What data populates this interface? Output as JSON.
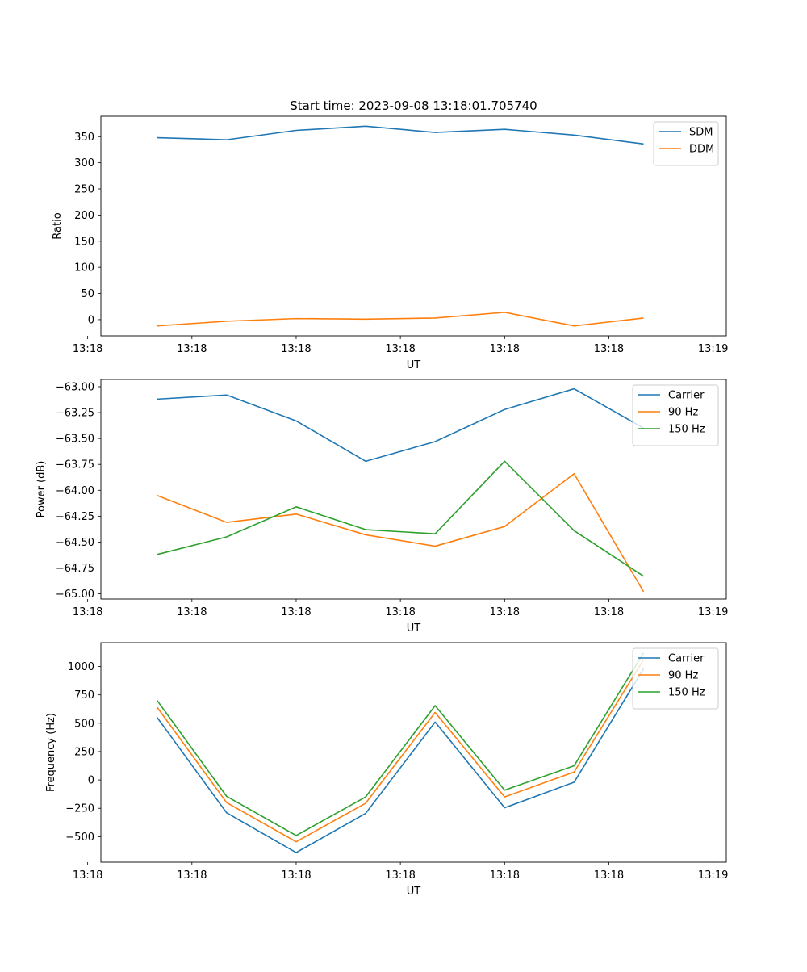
{
  "figure": {
    "title": "Start time: 2023-09-08 13:18:01.705740"
  },
  "colors": {
    "blue": "#1f77b4",
    "orange": "#ff7f0e",
    "green": "#2ca02c"
  },
  "chart_data": [
    {
      "type": "line",
      "xlabel": "UT",
      "ylabel": "Ratio",
      "x": [
        1,
        2,
        3,
        4,
        5,
        6,
        7,
        8
      ],
      "xlim": [
        0.19,
        9.19
      ],
      "xticks": [
        0,
        1.5,
        3,
        4.5,
        6,
        7.5,
        9
      ],
      "xtick_labels": [
        "13:18",
        "13:18",
        "13:18",
        "13:18",
        "13:18",
        "13:18",
        "13:19"
      ],
      "ylim": [
        -31,
        389
      ],
      "yticks": [
        0,
        50,
        100,
        150,
        200,
        250,
        300,
        350
      ],
      "ytick_labels": [
        "0",
        "50",
        "100",
        "150",
        "200",
        "250",
        "300",
        "350"
      ],
      "legend_position": "top-right",
      "series": [
        {
          "name": "SDM",
          "color": "#1f77b4",
          "values": [
            348,
            344,
            362,
            370,
            358,
            364,
            353,
            336
          ]
        },
        {
          "name": "DDM",
          "color": "#ff7f0e",
          "values": [
            -12,
            -3,
            2,
            1,
            3,
            14,
            -12,
            3
          ]
        }
      ]
    },
    {
      "type": "line",
      "xlabel": "UT",
      "ylabel": "Power (dB)",
      "x": [
        1,
        2,
        3,
        4,
        5,
        6,
        7,
        8
      ],
      "xlim": [
        0.19,
        9.19
      ],
      "xticks": [
        0,
        1.5,
        3,
        4.5,
        6,
        7.5,
        9
      ],
      "xtick_labels": [
        "13:18",
        "13:18",
        "13:18",
        "13:18",
        "13:18",
        "13:18",
        "13:19"
      ],
      "ylim": [
        -65.05,
        -62.93
      ],
      "yticks": [
        -65.0,
        -64.75,
        -64.5,
        -64.25,
        -64.0,
        -63.75,
        -63.5,
        -63.25,
        -63.0
      ],
      "ytick_labels": [
        "−65.00",
        "−64.75",
        "−64.50",
        "−64.25",
        "−64.00",
        "−63.75",
        "−63.50",
        "−63.25",
        "−63.00"
      ],
      "legend_position": "top-right",
      "series": [
        {
          "name": "Carrier",
          "color": "#1f77b4",
          "values": [
            -63.12,
            -63.08,
            -63.33,
            -63.72,
            -63.53,
            -63.22,
            -63.02,
            -63.4
          ]
        },
        {
          "name": "90 Hz",
          "color": "#ff7f0e",
          "values": [
            -64.05,
            -64.31,
            -64.23,
            -64.43,
            -64.54,
            -64.35,
            -63.84,
            -64.98
          ]
        },
        {
          "name": "150 Hz",
          "color": "#2ca02c",
          "values": [
            -64.62,
            -64.45,
            -64.16,
            -64.38,
            -64.42,
            -63.72,
            -64.39,
            -64.83
          ]
        }
      ]
    },
    {
      "type": "line",
      "xlabel": "UT",
      "ylabel": "Frequency (Hz)",
      "x": [
        1,
        2,
        3,
        4,
        5,
        6,
        7,
        8
      ],
      "xlim": [
        0.19,
        9.19
      ],
      "xticks": [
        0,
        1.5,
        3,
        4.5,
        6,
        7.5,
        9
      ],
      "xtick_labels": [
        "13:18",
        "13:18",
        "13:18",
        "13:18",
        "13:18",
        "13:18",
        "13:19"
      ],
      "ylim": [
        -725,
        1210
      ],
      "yticks": [
        -500,
        -250,
        0,
        250,
        500,
        750,
        1000
      ],
      "ytick_labels": [
        "−500",
        "−250",
        "0",
        "250",
        "500",
        "750",
        "1000"
      ],
      "legend_position": "top-right",
      "series": [
        {
          "name": "Carrier",
          "color": "#1f77b4",
          "values": [
            550,
            -290,
            -640,
            -295,
            510,
            -245,
            -20,
            980
          ]
        },
        {
          "name": "90 Hz",
          "color": "#ff7f0e",
          "values": [
            640,
            -200,
            -545,
            -205,
            595,
            -150,
            70,
            1060
          ]
        },
        {
          "name": "150 Hz",
          "color": "#2ca02c",
          "values": [
            700,
            -145,
            -490,
            -150,
            655,
            -90,
            125,
            1120
          ]
        }
      ]
    }
  ]
}
